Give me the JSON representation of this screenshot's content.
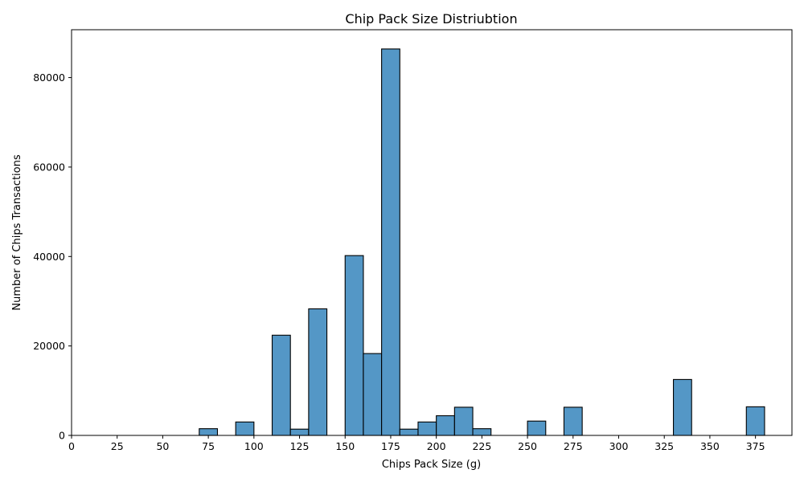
{
  "chart_data": {
    "type": "bar",
    "title": "Chip Pack Size Distriubtion",
    "xlabel": "Chips Pack Size (g)",
    "ylabel": "Number of Chips Transactions",
    "xlim": [
      0,
      395
    ],
    "ylim": [
      0,
      90700
    ],
    "grid": false,
    "legend": "none",
    "colors": {
      "bar_fill": "#5497c6",
      "bar_edge": "#000000",
      "axis": "#000000"
    },
    "x_ticks": [
      0,
      25,
      50,
      75,
      100,
      125,
      150,
      175,
      200,
      225,
      250,
      275,
      300,
      325,
      350,
      375
    ],
    "y_ticks": [
      0,
      20000,
      40000,
      60000,
      80000
    ],
    "bin_width": 10,
    "bins": [
      {
        "start": 70,
        "count": 1500
      },
      {
        "start": 80,
        "count": 0
      },
      {
        "start": 90,
        "count": 3000
      },
      {
        "start": 100,
        "count": 0
      },
      {
        "start": 110,
        "count": 22400
      },
      {
        "start": 120,
        "count": 1400
      },
      {
        "start": 130,
        "count": 28300
      },
      {
        "start": 140,
        "count": 0
      },
      {
        "start": 150,
        "count": 40200
      },
      {
        "start": 160,
        "count": 18300
      },
      {
        "start": 170,
        "count": 86400
      },
      {
        "start": 180,
        "count": 1400
      },
      {
        "start": 190,
        "count": 3000
      },
      {
        "start": 200,
        "count": 4400
      },
      {
        "start": 210,
        "count": 6300
      },
      {
        "start": 220,
        "count": 1500
      },
      {
        "start": 230,
        "count": 0
      },
      {
        "start": 240,
        "count": 0
      },
      {
        "start": 250,
        "count": 3200
      },
      {
        "start": 260,
        "count": 0
      },
      {
        "start": 270,
        "count": 6300
      },
      {
        "start": 280,
        "count": 0
      },
      {
        "start": 290,
        "count": 0
      },
      {
        "start": 300,
        "count": 0
      },
      {
        "start": 310,
        "count": 0
      },
      {
        "start": 320,
        "count": 0
      },
      {
        "start": 330,
        "count": 12500
      },
      {
        "start": 340,
        "count": 0
      },
      {
        "start": 350,
        "count": 0
      },
      {
        "start": 360,
        "count": 0
      },
      {
        "start": 370,
        "count": 6400
      }
    ]
  }
}
